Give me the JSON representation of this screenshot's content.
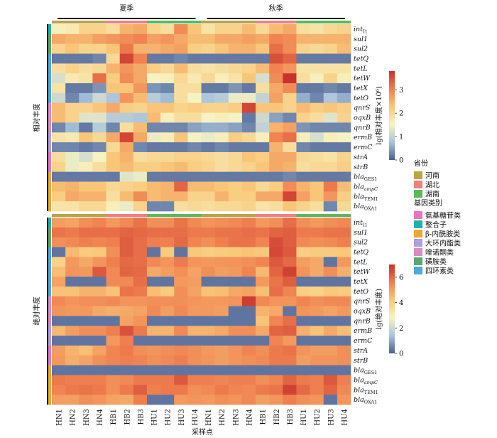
{
  "chart_data": {
    "type": "heatmap",
    "season_labels": [
      "夏季",
      "秋季"
    ],
    "xlabel": "采样点",
    "samples": [
      "HN1",
      "HN2",
      "HN3",
      "HN4",
      "HB1",
      "HB2",
      "HB3",
      "HU1",
      "HU2",
      "HU3",
      "HU4",
      "HN1",
      "HN2",
      "HN3",
      "HN4",
      "HB1",
      "HB2",
      "HB3",
      "HU1",
      "HU2",
      "HU3",
      "HU4"
    ],
    "sample_province": [
      "河南",
      "河南",
      "河南",
      "河南",
      "湖北",
      "湖北",
      "湖北",
      "湖南",
      "湖南",
      "湖南",
      "湖南",
      "河南",
      "河南",
      "河南",
      "河南",
      "湖北",
      "湖北",
      "湖北",
      "湖南",
      "湖南",
      "湖南",
      "湖南"
    ],
    "genes": [
      {
        "name": "int",
        "sub": "I1",
        "italic_sub": false,
        "category": "整合子"
      },
      {
        "name": "sul1",
        "sub": "",
        "italic_sub": false,
        "category": "磺胺类"
      },
      {
        "name": "sul2",
        "sub": "",
        "italic_sub": false,
        "category": "磺胺类"
      },
      {
        "name": "tetQ",
        "sub": "",
        "italic_sub": false,
        "category": "四环素类"
      },
      {
        "name": "tetL",
        "sub": "",
        "italic_sub": false,
        "category": "四环素类"
      },
      {
        "name": "tetW",
        "sub": "",
        "italic_sub": false,
        "category": "四环素类"
      },
      {
        "name": "tetX",
        "sub": "",
        "italic_sub": false,
        "category": "四环素类"
      },
      {
        "name": "tetO",
        "sub": "",
        "italic_sub": false,
        "category": "四环素类"
      },
      {
        "name": "qnrS",
        "sub": "",
        "italic_sub": false,
        "category": "喹诺酮类"
      },
      {
        "name": "oqxB",
        "sub": "",
        "italic_sub": false,
        "category": "喹诺酮类"
      },
      {
        "name": "qnrB",
        "sub": "",
        "italic_sub": false,
        "category": "喹诺酮类"
      },
      {
        "name": "ermB",
        "sub": "",
        "italic_sub": false,
        "category": "大环内酯类"
      },
      {
        "name": "ermC",
        "sub": "",
        "italic_sub": false,
        "category": "大环内酯类"
      },
      {
        "name": "strA",
        "sub": "",
        "italic_sub": false,
        "category": "氨基糖苷类"
      },
      {
        "name": "strB",
        "sub": "",
        "italic_sub": false,
        "category": "氨基糖苷类"
      },
      {
        "name": "bla",
        "sub": "GES1",
        "italic_sub": false,
        "category": "β-内酰胺类"
      },
      {
        "name": "bla",
        "sub": "ampC",
        "italic_sub": true,
        "category": "β-内酰胺类"
      },
      {
        "name": "bla",
        "sub": "TEM1",
        "italic_sub": false,
        "category": "β-内酰胺类"
      },
      {
        "name": "bla",
        "sub": "OXA1",
        "italic_sub": false,
        "category": "β-内酰胺类"
      }
    ],
    "panels": [
      {
        "title": "相对丰度",
        "legend_title": "lg(相对丰度×10⁶)",
        "legend_ticks": [
          0,
          1,
          2,
          3
        ],
        "range": [
          0,
          3.8
        ],
        "values": [
          [
            1.6,
            1.7,
            2.1,
            2.1,
            1.9,
            2.5,
            2.6,
            2.1,
            1.9,
            2.9,
            2.3,
            1.8,
            2.1,
            2.1,
            2.4,
            2.0,
            2.4,
            2.6,
            1.9,
            1.8,
            2.0,
            2.1
          ],
          [
            2.6,
            2.5,
            2.5,
            2.7,
            2.8,
            2.9,
            3.0,
            2.7,
            2.8,
            2.6,
            2.4,
            2.4,
            2.6,
            2.6,
            2.7,
            2.6,
            3.0,
            2.9,
            2.5,
            2.5,
            2.5,
            2.5
          ],
          [
            2.1,
            2.3,
            2.1,
            2.1,
            2.3,
            3.1,
            2.5,
            2.5,
            2.6,
            2.7,
            2.2,
            2.1,
            2.3,
            2.5,
            2.5,
            2.3,
            3.2,
            2.9,
            2.1,
            2.0,
            2.1,
            2.4
          ],
          [
            0.2,
            0.2,
            0.2,
            0.3,
            2.0,
            3.6,
            3.0,
            0.2,
            0.2,
            0.3,
            0.2,
            0.2,
            0.2,
            0.2,
            0.2,
            0.2,
            3.5,
            3.3,
            0.2,
            0.2,
            0.2,
            0.2
          ],
          [
            1.9,
            2.1,
            1.9,
            2.0,
            2.5,
            2.8,
            2.6,
            2.2,
            2.0,
            2.4,
            1.9,
            1.8,
            1.9,
            2.0,
            2.1,
            2.4,
            3.0,
            2.8,
            1.8,
            1.8,
            1.8,
            1.8
          ],
          [
            1.2,
            1.7,
            1.8,
            3.2,
            2.2,
            2.9,
            2.6,
            1.5,
            1.6,
            2.0,
            1.7,
            2.0,
            1.6,
            1.8,
            2.3,
            1.2,
            2.9,
            3.8,
            1.9,
            1.6,
            2.1,
            1.6
          ],
          [
            1.8,
            0.2,
            0.2,
            0.4,
            2.3,
            2.3,
            2.8,
            0.4,
            0.3,
            1.9,
            1.9,
            0.2,
            0.2,
            0.4,
            0.2,
            1.9,
            2.6,
            2.9,
            0.2,
            0.2,
            0.3,
            0.2
          ],
          [
            1.1,
            0.3,
            0.7,
            1.1,
            0.8,
            2.8,
            2.4,
            0.9,
            0.7,
            1.9,
            1.5,
            0.8,
            0.9,
            1.4,
            1.4,
            1.0,
            2.7,
            2.1,
            0.6,
            0.3,
            0.8,
            0.6
          ],
          [
            2.4,
            2.1,
            2.1,
            2.3,
            2.6,
            2.2,
            2.1,
            2.3,
            2.3,
            2.1,
            2.2,
            2.1,
            2.1,
            2.2,
            3.6,
            2.3,
            2.3,
            2.1,
            2.4,
            2.2,
            2.3,
            2.2
          ],
          [
            2.4,
            2.1,
            1.3,
            1.3,
            0.9,
            0.9,
            0.8,
            2.4,
            1.6,
            1.9,
            1.9,
            1.5,
            1.6,
            1.5,
            0.2,
            1.1,
            0.5,
            0.3,
            2.1,
            1.9,
            1.3,
            2.1
          ],
          [
            0.3,
            0.7,
            0.2,
            0.9,
            0.3,
            1.9,
            2.4,
            0.3,
            0.3,
            0.3,
            0.5,
            0.6,
            0.6,
            0.5,
            0.3,
            1.0,
            2.5,
            2.7,
            0.4,
            0.3,
            0.3,
            0.3
          ],
          [
            1.8,
            1.7,
            2.3,
            2.0,
            2.6,
            3.6,
            2.6,
            1.4,
            1.6,
            2.3,
            1.5,
            1.4,
            1.6,
            2.2,
            2.0,
            1.6,
            3.0,
            3.2,
            1.6,
            1.2,
            1.6,
            1.5
          ],
          [
            0.3,
            0.3,
            0.2,
            0.3,
            2.0,
            2.6,
            0.3,
            0.2,
            0.2,
            0.2,
            0.3,
            0.2,
            0.3,
            0.2,
            0.2,
            0.2,
            2.5,
            1.9,
            0.3,
            0.2,
            0.2,
            0.2
          ],
          [
            1.9,
            1.4,
            1.2,
            1.5,
            2.3,
            2.5,
            1.9,
            2.0,
            2.0,
            2.1,
            2.1,
            2.0,
            1.9,
            2.0,
            2.3,
            2.2,
            2.6,
            2.6,
            2.0,
            1.9,
            1.8,
            2.1
          ],
          [
            2.1,
            1.4,
            1.6,
            1.9,
            2.3,
            2.4,
            2.2,
            2.2,
            2.3,
            2.4,
            2.2,
            2.1,
            1.9,
            2.0,
            2.1,
            2.3,
            2.6,
            2.5,
            1.9,
            2.0,
            2.0,
            2.2
          ],
          [
            0.2,
            0.2,
            0.2,
            0.2,
            0.2,
            1.3,
            1.4,
            0.2,
            0.2,
            0.2,
            0.2,
            0.2,
            0.2,
            0.2,
            0.2,
            0.2,
            0.2,
            0.3,
            0.2,
            0.2,
            0.2,
            0.2
          ],
          [
            2.4,
            2.5,
            2.3,
            2.3,
            2.0,
            2.1,
            2.2,
            2.4,
            2.5,
            3.3,
            2.4,
            2.4,
            2.3,
            2.2,
            2.3,
            2.0,
            2.2,
            2.9,
            2.5,
            2.3,
            3.1,
            2.4
          ],
          [
            2.2,
            2.6,
            2.5,
            2.5,
            1.9,
            2.4,
            2.9,
            2.4,
            2.5,
            2.5,
            2.1,
            2.1,
            2.5,
            2.2,
            2.2,
            2.6,
            2.6,
            3.6,
            2.7,
            2.3,
            2.8,
            2.2
          ],
          [
            1.8,
            1.8,
            2.0,
            2.0,
            1.6,
            1.4,
            2.1,
            0.3,
            0.3,
            1.9,
            2.0,
            1.9,
            2.0,
            2.0,
            2.1,
            1.8,
            1.9,
            2.3,
            2.1,
            1.9,
            0.3,
            2.0
          ]
        ]
      },
      {
        "title": "绝对丰度",
        "legend_title": "lg(绝对丰度)",
        "legend_ticks": [
          0,
          2,
          4,
          6
        ],
        "range": [
          0,
          7
        ],
        "values": [
          [
            5.0,
            4.9,
            5.3,
            5.5,
            5.1,
            5.4,
            5.8,
            5.3,
            5.3,
            5.8,
            5.4,
            5.2,
            5.3,
            5.4,
            5.6,
            5.1,
            5.3,
            5.9,
            5.3,
            5.1,
            5.3,
            5.4
          ],
          [
            5.8,
            5.7,
            5.9,
            5.9,
            5.9,
            6.1,
            6.0,
            5.9,
            5.9,
            5.9,
            5.7,
            5.7,
            5.8,
            5.8,
            5.9,
            5.8,
            6.1,
            6.2,
            5.7,
            5.7,
            5.8,
            5.8
          ],
          [
            5.3,
            5.4,
            5.6,
            5.5,
            5.6,
            6.2,
            5.9,
            5.6,
            5.6,
            6.0,
            5.5,
            5.3,
            5.6,
            5.8,
            5.8,
            5.5,
            6.5,
            6.2,
            5.4,
            5.3,
            5.4,
            5.6
          ],
          [
            0.3,
            4.5,
            4.1,
            4.2,
            5.3,
            6.2,
            5.9,
            0.3,
            4.1,
            0.3,
            4.2,
            4.0,
            4.1,
            4.2,
            4.3,
            4.2,
            6.6,
            6.3,
            4.0,
            4.1,
            4.1,
            4.2
          ],
          [
            3.9,
            5.1,
            4.8,
            5.2,
            5.6,
            6.0,
            5.9,
            5.4,
            5.2,
            5.7,
            5.2,
            5.1,
            5.2,
            5.2,
            5.3,
            5.5,
            6.3,
            6.0,
            5.0,
            4.8,
            0.3,
            5.1
          ],
          [
            4.4,
            5.2,
            5.1,
            6.3,
            5.4,
            6.1,
            6.0,
            4.8,
            5.0,
            5.3,
            4.9,
            5.3,
            5.0,
            5.1,
            5.5,
            4.5,
            6.1,
            6.7,
            5.2,
            4.8,
            5.3,
            4.7
          ],
          [
            4.9,
            0.3,
            0.3,
            0.3,
            5.4,
            5.4,
            5.9,
            0.3,
            0.3,
            5.1,
            5.0,
            0.3,
            0.3,
            0.3,
            0.3,
            5.1,
            5.8,
            6.2,
            0.3,
            0.3,
            0.3,
            0.3
          ],
          [
            4.3,
            4.3,
            4.6,
            4.6,
            4.3,
            5.8,
            5.7,
            4.4,
            4.1,
            5.3,
            4.9,
            4.3,
            4.4,
            4.8,
            4.9,
            4.4,
            5.9,
            5.5,
            4.0,
            3.9,
            4.2,
            4.1
          ],
          [
            5.4,
            5.2,
            5.3,
            5.3,
            5.4,
            5.2,
            5.2,
            5.3,
            5.3,
            5.3,
            5.2,
            5.1,
            5.1,
            5.2,
            6.8,
            5.4,
            5.2,
            5.2,
            5.5,
            5.3,
            5.4,
            5.4
          ],
          [
            5.2,
            5.1,
            5.1,
            4.8,
            4.7,
            4.8,
            4.9,
            5.4,
            5.0,
            5.4,
            5.1,
            5.1,
            5.0,
            0.3,
            0.3,
            4.6,
            4.8,
            0.3,
            5.2,
            5.1,
            4.9,
            5.1
          ],
          [
            0.3,
            0.3,
            0.3,
            0.3,
            0.3,
            4.9,
            5.2,
            0.3,
            0.3,
            0.3,
            0.3,
            0.3,
            0.3,
            0.3,
            0.3,
            4.3,
            5.5,
            5.9,
            0.3,
            0.3,
            0.3,
            0.3
          ],
          [
            4.5,
            5.0,
            5.3,
            5.3,
            5.6,
            6.4,
            5.7,
            4.6,
            4.6,
            5.4,
            4.6,
            4.6,
            4.8,
            5.3,
            5.3,
            4.8,
            6.1,
            6.2,
            4.7,
            4.3,
            4.8,
            4.4
          ],
          [
            0.3,
            0.3,
            0.3,
            0.3,
            5.1,
            5.6,
            0.3,
            0.3,
            0.3,
            0.3,
            0.3,
            0.3,
            0.3,
            0.3,
            0.3,
            0.3,
            5.5,
            5.1,
            0.3,
            0.3,
            0.3,
            0.3
          ],
          [
            5.0,
            4.6,
            4.4,
            4.9,
            5.5,
            5.7,
            5.3,
            5.2,
            5.3,
            5.4,
            5.3,
            5.1,
            5.0,
            5.2,
            5.5,
            5.3,
            5.7,
            5.8,
            5.2,
            5.0,
            5.0,
            5.3
          ],
          [
            5.1,
            4.7,
            4.9,
            5.3,
            5.5,
            5.6,
            5.5,
            5.3,
            5.4,
            5.6,
            5.3,
            5.2,
            5.0,
            5.2,
            5.3,
            5.4,
            5.7,
            5.7,
            5.0,
            5.2,
            5.2,
            5.3
          ],
          [
            0.3,
            0.3,
            0.3,
            0.3,
            0.3,
            0.3,
            0.3,
            0.3,
            0.3,
            0.3,
            0.3,
            0.3,
            0.3,
            0.3,
            0.3,
            0.3,
            0.3,
            0.3,
            0.3,
            0.3,
            0.3,
            0.3
          ],
          [
            5.7,
            5.6,
            5.6,
            5.6,
            5.3,
            5.4,
            5.7,
            5.7,
            5.7,
            6.3,
            5.6,
            5.6,
            5.5,
            5.6,
            5.6,
            5.3,
            5.5,
            6.1,
            5.7,
            5.6,
            6.3,
            5.6
          ],
          [
            5.5,
            5.7,
            5.8,
            5.7,
            5.3,
            5.7,
            6.2,
            5.6,
            5.7,
            5.7,
            5.3,
            5.4,
            5.7,
            5.5,
            5.4,
            5.7,
            5.8,
            6.7,
            6.0,
            5.6,
            6.1,
            5.4
          ],
          [
            5.0,
            5.0,
            5.3,
            5.2,
            4.9,
            4.8,
            5.6,
            0.3,
            0.3,
            5.1,
            5.2,
            5.1,
            5.3,
            5.2,
            5.4,
            5.0,
            5.2,
            5.6,
            5.3,
            5.2,
            0.3,
            5.2
          ]
        ]
      }
    ],
    "legend": {
      "province_title": "省份",
      "provinces": [
        {
          "name": "河南",
          "color": "#b8a44a"
        },
        {
          "name": "湖北",
          "color": "#f08080"
        },
        {
          "name": "湖南",
          "color": "#5cb85c"
        }
      ],
      "category_title": "基因类别",
      "categories": [
        {
          "name": "氨基糖苷类",
          "color": "#e377c2"
        },
        {
          "name": "整合子",
          "color": "#20b2aa"
        },
        {
          "name": "β-内酰胺类",
          "color": "#e8a838"
        },
        {
          "name": "大环内酯类",
          "color": "#b39ddb"
        },
        {
          "name": "喹诺酮类",
          "color": "#d88ac6"
        },
        {
          "name": "磺胺类",
          "color": "#5aa66a"
        },
        {
          "name": "四环素类",
          "color": "#4fa8d8"
        }
      ]
    },
    "colormap": [
      "#4b5f8f",
      "#a9c3dc",
      "#f7f3c2",
      "#f9c87a",
      "#ef7f4f",
      "#c8322d"
    ]
  }
}
